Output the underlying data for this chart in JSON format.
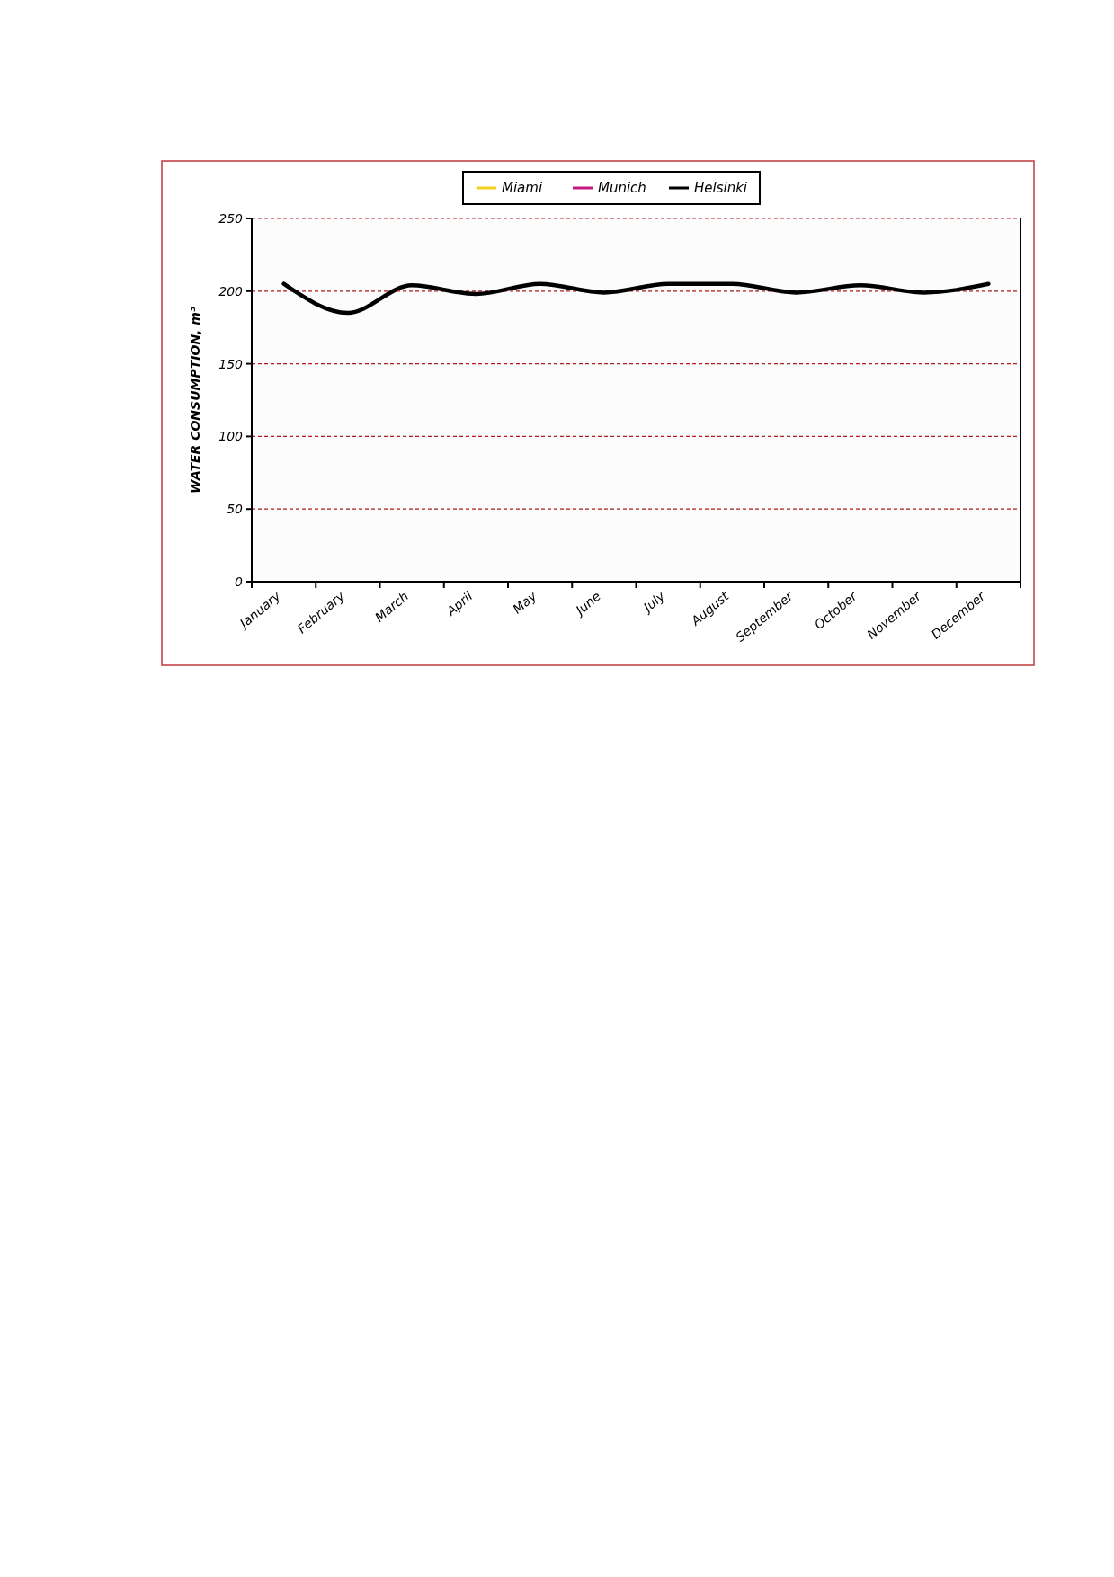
{
  "chart_data": {
    "type": "line",
    "ylabel": "WATER CONSUMPTION, m³",
    "categories": [
      "January",
      "February",
      "March",
      "April",
      "May",
      "June",
      "July",
      "August",
      "September",
      "October",
      "November",
      "December"
    ],
    "series": [
      {
        "name": "Miami",
        "color": "#f2d01e",
        "values": [
          null,
          null,
          null,
          null,
          null,
          null,
          null,
          null,
          null,
          null,
          null,
          null
        ]
      },
      {
        "name": "Munich",
        "color": "#c8187e",
        "values": [
          null,
          null,
          null,
          null,
          null,
          null,
          null,
          null,
          null,
          null,
          null,
          null
        ]
      },
      {
        "name": "Helsinki",
        "color": "#000000",
        "values": [
          205,
          185,
          204,
          198,
          205,
          199,
          205,
          205,
          199,
          204,
          199,
          205
        ]
      }
    ],
    "ylim": [
      0,
      250
    ],
    "yticks": [
      0,
      50,
      100,
      150,
      200,
      250
    ],
    "grid": "y",
    "legend": "top",
    "line_style": "solid"
  }
}
